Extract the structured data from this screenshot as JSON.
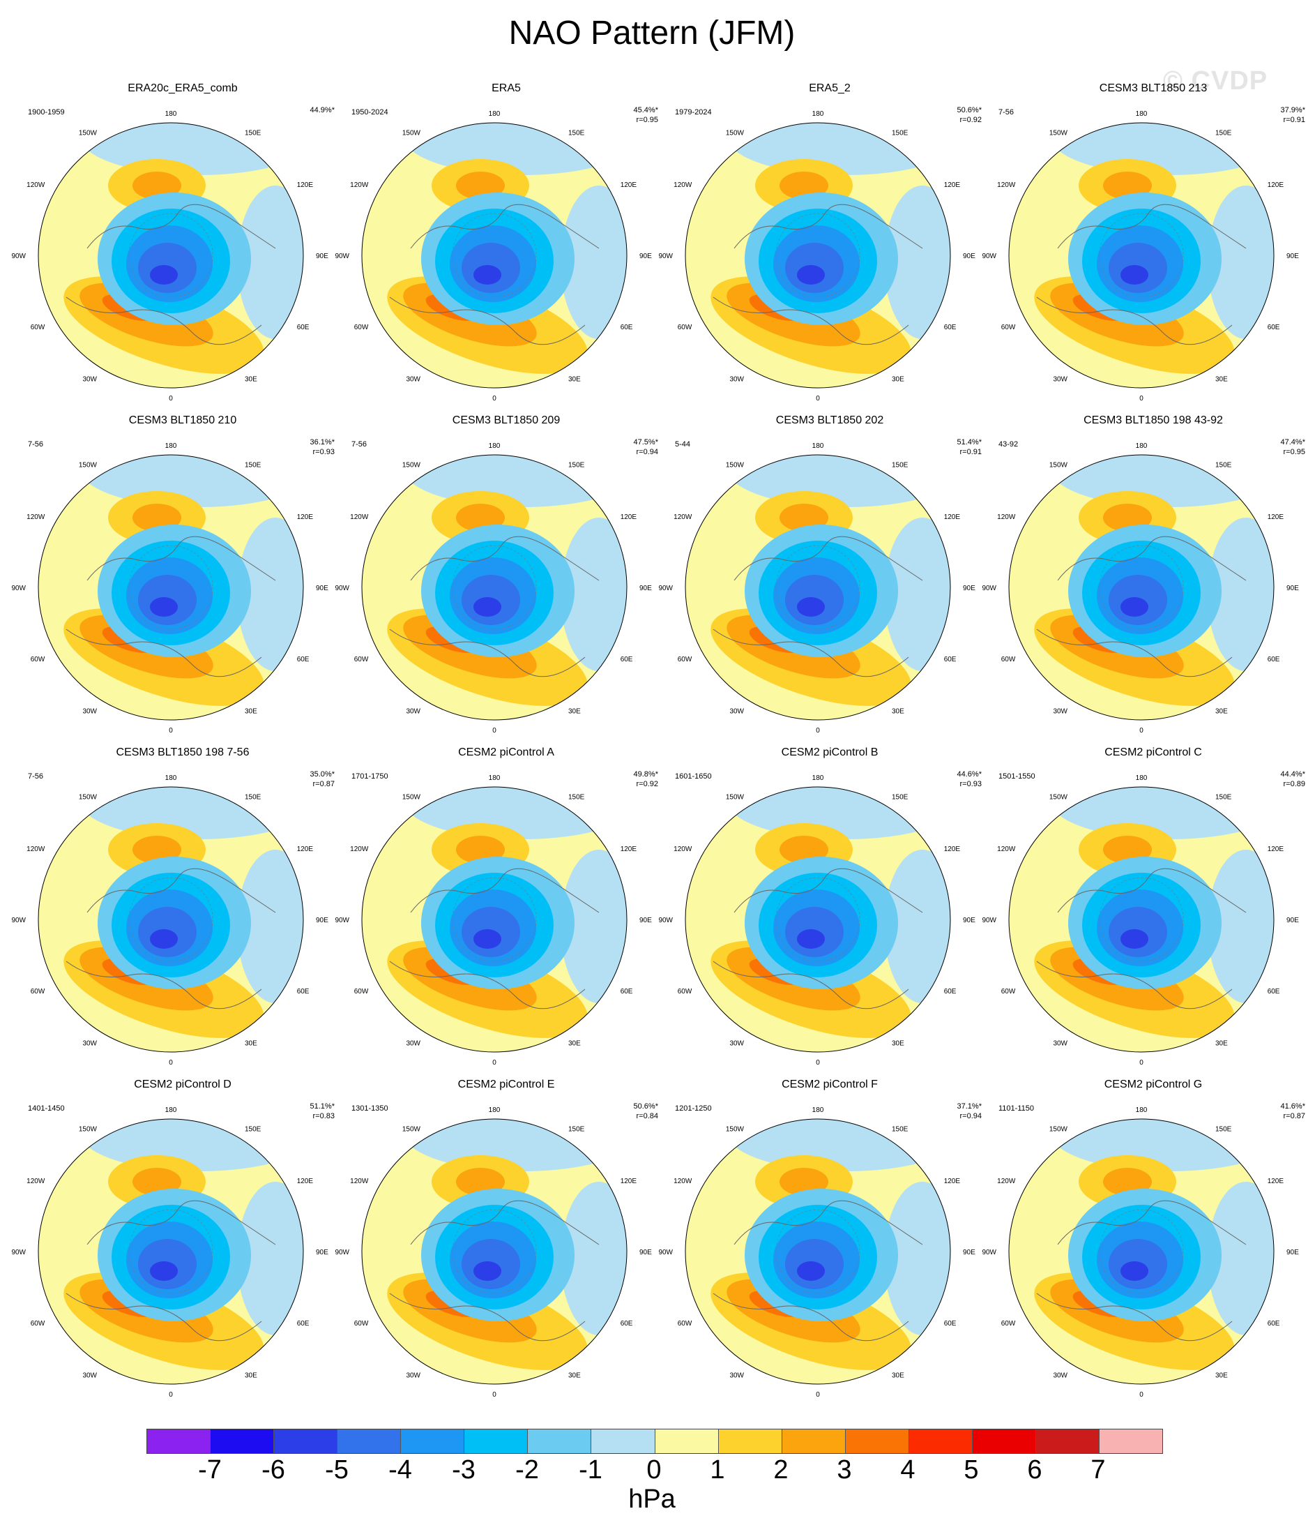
{
  "title": "NAO Pattern (JFM)",
  "watermark": "© CVDP",
  "colorbar": {
    "unit": "hPa",
    "ticks": [
      "-7",
      "-6",
      "-5",
      "-4",
      "-3",
      "-2",
      "-1",
      "0",
      "1",
      "2",
      "3",
      "4",
      "5",
      "6",
      "7"
    ],
    "colors": [
      "#8b22f0",
      "#1d0cf2",
      "#2c3ee8",
      "#3272ea",
      "#1e96f4",
      "#00bff7",
      "#6ccbf1",
      "#b5dff2",
      "#fbf9a1",
      "#fdd22d",
      "#fba40d",
      "#fa7405",
      "#fc2b00",
      "#ea0000",
      "#cc1b1b",
      "#f9b2b2"
    ]
  },
  "longitude_labels": [
    "180",
    "150E",
    "120E",
    "90E",
    "60E",
    "30E",
    "0",
    "30W",
    "60W",
    "90W",
    "120W",
    "150W"
  ],
  "panels": [
    {
      "title": "ERA20c_ERA5_comb",
      "period": "1900-1959",
      "pct": "44.9%*",
      "r": ""
    },
    {
      "title": "ERA5",
      "period": "1950-2024",
      "pct": "45.4%*",
      "r": "r=0.95"
    },
    {
      "title": "ERA5_2",
      "period": "1979-2024",
      "pct": "50.6%*",
      "r": "r=0.92"
    },
    {
      "title": "CESM3 BLT1850 213",
      "period": "7-56",
      "pct": "37.9%*",
      "r": "r=0.91"
    },
    {
      "title": "CESM3 BLT1850 210",
      "period": "7-56",
      "pct": "36.1%*",
      "r": "r=0.93"
    },
    {
      "title": "CESM3 BLT1850 209",
      "period": "7-56",
      "pct": "47.5%*",
      "r": "r=0.94"
    },
    {
      "title": "CESM3 BLT1850 202",
      "period": "5-44",
      "pct": "51.4%*",
      "r": "r=0.91"
    },
    {
      "title": "CESM3 BLT1850 198 43-92",
      "period": "43-92",
      "pct": "47.4%*",
      "r": "r=0.95"
    },
    {
      "title": "CESM3 BLT1850 198 7-56",
      "period": "7-56",
      "pct": "35.0%*",
      "r": "r=0.87"
    },
    {
      "title": "CESM2 piControl A",
      "period": "1701-1750",
      "pct": "49.8%*",
      "r": "r=0.92"
    },
    {
      "title": "CESM2 piControl B",
      "period": "1601-1650",
      "pct": "44.6%*",
      "r": "r=0.93"
    },
    {
      "title": "CESM2 piControl C",
      "period": "1501-1550",
      "pct": "44.4%*",
      "r": "r=0.89"
    },
    {
      "title": "CESM2 piControl D",
      "period": "1401-1450",
      "pct": "51.1%*",
      "r": "r=0.83"
    },
    {
      "title": "CESM2 piControl E",
      "period": "1301-1350",
      "pct": "50.6%*",
      "r": "r=0.84"
    },
    {
      "title": "CESM2 piControl F",
      "period": "1201-1250",
      "pct": "37.1%*",
      "r": "r=0.94"
    },
    {
      "title": "CESM2 piControl G",
      "period": "1101-1150",
      "pct": "41.6%*",
      "r": "r=0.87"
    }
  ]
}
